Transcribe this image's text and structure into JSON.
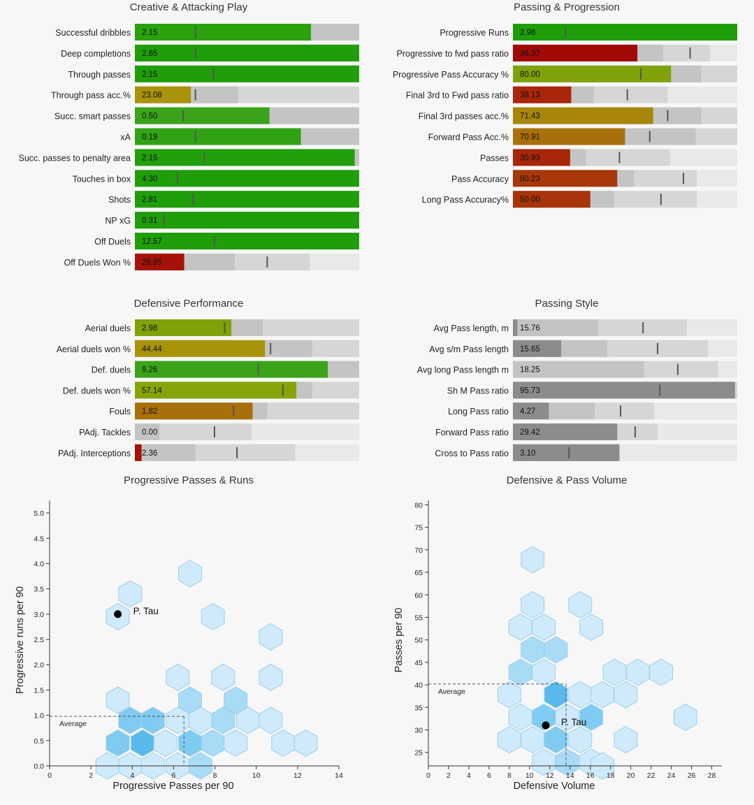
{
  "bar_panels": [
    {
      "title": "Creative & Attacking Play",
      "rows": [
        {
          "label": "Successful dribbles",
          "text": "2.15",
          "fill": 0.785,
          "bg1": 1.0,
          "bg2": 1.0,
          "marker": 0.27,
          "color": "#2aa10d"
        },
        {
          "label": "Deep completions",
          "text": "2.65",
          "fill": 1.0,
          "bg1": 1.0,
          "bg2": 1.0,
          "marker": 0.27,
          "color": "#1f9e0a"
        },
        {
          "label": "Through passes",
          "text": "2.15",
          "fill": 1.0,
          "bg1": 1.0,
          "bg2": 1.0,
          "marker": 0.35,
          "color": "#1f9e0a"
        },
        {
          "label": "Through pass acc.%",
          "text": "23.08",
          "fill": 0.25,
          "bg1": 0.46,
          "bg2": 1.0,
          "marker": 0.27,
          "color": "#a8930a"
        },
        {
          "label": "Succ. smart passes",
          "text": "0.50",
          "fill": 0.6,
          "bg1": 1.0,
          "bg2": 1.0,
          "marker": 0.215,
          "color": "#3aa31a"
        },
        {
          "label": "xA",
          "text": "0.19",
          "fill": 0.74,
          "bg1": 1.0,
          "bg2": 1.0,
          "marker": 0.27,
          "color": "#30a214"
        },
        {
          "label": "Succ. passes to penalty area",
          "text": "2.15",
          "fill": 0.98,
          "bg1": 1.0,
          "bg2": 1.0,
          "marker": 0.31,
          "color": "#229f0b"
        },
        {
          "label": "Touches in box",
          "text": "4.30",
          "fill": 1.0,
          "bg1": 1.0,
          "bg2": 1.0,
          "marker": 0.19,
          "color": "#1f9e0a"
        },
        {
          "label": "Shots",
          "text": "2.81",
          "fill": 1.0,
          "bg1": 1.0,
          "bg2": 1.0,
          "marker": 0.26,
          "color": "#1f9e0a"
        },
        {
          "label": "NP xG",
          "text": "0.31",
          "fill": 1.0,
          "bg1": 1.0,
          "bg2": 1.0,
          "marker": 0.13,
          "color": "#1f9e0a"
        },
        {
          "label": "Off Duels",
          "text": "12.57",
          "fill": 1.0,
          "bg1": 1.0,
          "bg2": 1.0,
          "marker": 0.355,
          "color": "#1f9e0a"
        },
        {
          "label": "Off Duels Won %",
          "text": "28.95",
          "fill": 0.22,
          "bg1": 0.445,
          "bg2": 0.78,
          "marker": 0.59,
          "color": "#a4120a"
        }
      ]
    },
    {
      "title": "Passing & Progression",
      "rows": [
        {
          "label": "Progressive Runs",
          "text": "2.98",
          "fill": 1.0,
          "bg1": 1.0,
          "bg2": 1.0,
          "marker": 0.235,
          "color": "#1f9e0a"
        },
        {
          "label": "Progressive to fwd pass ratio",
          "text": "36.37",
          "fill": 0.555,
          "bg1": 0.67,
          "bg2": 0.88,
          "marker": 0.79,
          "color": "#a10a06"
        },
        {
          "label": "Progressive Pass Accuracy %",
          "text": "80.00",
          "fill": 0.705,
          "bg1": 0.84,
          "bg2": 1.0,
          "marker": 0.57,
          "color": "#7fa208"
        },
        {
          "label": "Final 3rd to Fwd pass ratio",
          "text": "38.13",
          "fill": 0.26,
          "bg1": 0.36,
          "bg2": 0.69,
          "marker": 0.51,
          "color": "#a8260a"
        },
        {
          "label": "Final 3rd passes acc.%",
          "text": "71.43",
          "fill": 0.625,
          "bg1": 0.84,
          "bg2": 1.0,
          "marker": 0.69,
          "color": "#a8860a"
        },
        {
          "label": "Forward Pass Acc.%",
          "text": "70.91",
          "fill": 0.5,
          "bg1": 0.815,
          "bg2": 1.0,
          "marker": 0.61,
          "color": "#a8700a"
        },
        {
          "label": "Passes",
          "text": "30.93",
          "fill": 0.255,
          "bg1": 0.325,
          "bg2": 0.7,
          "marker": 0.475,
          "color": "#a8260a"
        },
        {
          "label": "Pass Accuracy",
          "text": "80.23",
          "fill": 0.465,
          "bg1": 0.54,
          "bg2": 0.82,
          "marker": 0.76,
          "color": "#a8380a"
        },
        {
          "label": "Long Pass Accuracy%",
          "text": "50.00",
          "fill": 0.345,
          "bg1": 0.45,
          "bg2": 0.82,
          "marker": 0.66,
          "color": "#a8340a"
        }
      ]
    },
    {
      "title": "Defensive Performance",
      "rows": [
        {
          "label": "Aerial duels",
          "text": "2.98",
          "fill": 0.43,
          "bg1": 0.57,
          "bg2": 1.0,
          "marker": 0.4,
          "color": "#7fa208"
        },
        {
          "label": "Aerial duels won %",
          "text": "44.44",
          "fill": 0.58,
          "bg1": 0.79,
          "bg2": 1.0,
          "marker": 0.605,
          "color": "#a8930a"
        },
        {
          "label": "Def. duels",
          "text": "9.26",
          "fill": 0.86,
          "bg1": 1.0,
          "bg2": 1.0,
          "marker": 0.55,
          "color": "#3aa31a"
        },
        {
          "label": "Def. duels won %",
          "text": "57.14",
          "fill": 0.72,
          "bg1": 0.79,
          "bg2": 1.0,
          "marker": 0.66,
          "color": "#86a408"
        },
        {
          "label": "Fouls",
          "text": "1.82",
          "fill": 0.525,
          "bg1": 0.59,
          "bg2": 1.0,
          "marker": 0.44,
          "color": "#a8700a"
        },
        {
          "label": "PAdj. Tackles",
          "text": "0.00",
          "fill": 0.0,
          "bg1": 0.11,
          "bg2": 0.52,
          "marker": 0.355,
          "color": "#a4120a"
        },
        {
          "label": "PAdj. Interceptions",
          "text": "2.36",
          "fill": 0.03,
          "bg1": 0.27,
          "bg2": 0.715,
          "marker": 0.455,
          "color": "#a4120a"
        }
      ]
    },
    {
      "title": "Passing Style",
      "rows": [
        {
          "label": "Avg Pass length, m",
          "text": "15.76",
          "fill": 0.02,
          "bg1": 0.38,
          "bg2": 0.775,
          "marker": 0.58,
          "color": "#8c8c8c"
        },
        {
          "label": "Avg s/m Pass length",
          "text": "15.65",
          "fill": 0.215,
          "bg1": 0.42,
          "bg2": 0.87,
          "marker": 0.645,
          "color": "#8c8c8c"
        },
        {
          "label": "Avg long Pass length m",
          "text": "18.25",
          "fill": 0.0,
          "bg1": 0.585,
          "bg2": 0.915,
          "marker": 0.735,
          "color": "#8c8c8c"
        },
        {
          "label": "Sh M Pass ratio",
          "text": "95.73",
          "fill": 0.99,
          "bg1": 0.99,
          "bg2": 1.0,
          "marker": 0.655,
          "color": "#8c8c8c"
        },
        {
          "label": "Long Pass ratio",
          "text": "4.27",
          "fill": 0.16,
          "bg1": 0.365,
          "bg2": 0.63,
          "marker": 0.48,
          "color": "#8c8c8c"
        },
        {
          "label": "Forward Pass ratio",
          "text": "29.42",
          "fill": 0.465,
          "bg1": 0.465,
          "bg2": 0.645,
          "marker": 0.545,
          "color": "#8c8c8c"
        },
        {
          "label": "Cross to Pass ratio",
          "text": "3.10",
          "fill": 0.475,
          "bg1": 0.475,
          "bg2": 0.475,
          "marker": 0.25,
          "color": "#8c8c8c"
        }
      ]
    }
  ],
  "chart_data": [
    {
      "type": "scatter",
      "title": "Progressive Passes & Runs",
      "xlabel": "Progressive Passes per 90",
      "ylabel": "Progressive runs per 90",
      "xlim": [
        0,
        14
      ],
      "ylim": [
        0,
        5.25
      ],
      "xticks": [
        0,
        2,
        4,
        6,
        8,
        10,
        12,
        14
      ],
      "yticks": [
        0.0,
        0.5,
        1.0,
        1.5,
        2.0,
        2.5,
        3.0,
        3.5,
        4.0,
        4.5,
        5.0
      ],
      "tick_labels_x": [
        "0",
        "2",
        "4",
        "6",
        "8",
        "10",
        "12",
        "14"
      ],
      "tick_labels_y": [
        "0.0",
        "0.5",
        "1.0",
        "1.5",
        "2.0",
        "2.5",
        "3.0",
        "3.5",
        "4.0",
        "4.5",
        "5.0"
      ],
      "average": {
        "x": 6.5,
        "y": 0.98,
        "label": "Average"
      },
      "player": {
        "name": "P. Tau",
        "x": 3.3,
        "y": 3.0
      },
      "hexbins": [
        {
          "x": 3.3,
          "y": 2.95,
          "count": 1
        },
        {
          "x": 3.9,
          "y": 3.4,
          "count": 1
        },
        {
          "x": 6.8,
          "y": 3.8,
          "count": 1
        },
        {
          "x": 7.9,
          "y": 2.95,
          "count": 1
        },
        {
          "x": 10.7,
          "y": 2.55,
          "count": 1
        },
        {
          "x": 6.2,
          "y": 1.75,
          "count": 1
        },
        {
          "x": 8.4,
          "y": 1.75,
          "count": 1
        },
        {
          "x": 10.7,
          "y": 1.75,
          "count": 1
        },
        {
          "x": 3.3,
          "y": 1.3,
          "count": 1
        },
        {
          "x": 6.8,
          "y": 1.3,
          "count": 2
        },
        {
          "x": 9.0,
          "y": 1.3,
          "count": 2
        },
        {
          "x": 3.9,
          "y": 0.9,
          "count": 3
        },
        {
          "x": 5.0,
          "y": 0.9,
          "count": 3
        },
        {
          "x": 6.2,
          "y": 0.9,
          "count": 1
        },
        {
          "x": 7.3,
          "y": 0.9,
          "count": 1
        },
        {
          "x": 8.4,
          "y": 0.9,
          "count": 2
        },
        {
          "x": 9.6,
          "y": 0.9,
          "count": 1
        },
        {
          "x": 10.7,
          "y": 0.9,
          "count": 1
        },
        {
          "x": 3.3,
          "y": 0.45,
          "count": 3
        },
        {
          "x": 4.5,
          "y": 0.45,
          "count": 4
        },
        {
          "x": 5.6,
          "y": 0.45,
          "count": 1
        },
        {
          "x": 6.8,
          "y": 0.45,
          "count": 3
        },
        {
          "x": 7.9,
          "y": 0.45,
          "count": 2
        },
        {
          "x": 9.0,
          "y": 0.45,
          "count": 1
        },
        {
          "x": 11.3,
          "y": 0.45,
          "count": 1
        },
        {
          "x": 12.4,
          "y": 0.45,
          "count": 1
        },
        {
          "x": 2.8,
          "y": 0.0,
          "count": 1
        },
        {
          "x": 3.9,
          "y": 0.0,
          "count": 1
        },
        {
          "x": 5.0,
          "y": 0.0,
          "count": 1
        },
        {
          "x": 6.2,
          "y": 0.0,
          "count": 1
        },
        {
          "x": 7.3,
          "y": 0.0,
          "count": 2
        }
      ]
    },
    {
      "type": "scatter",
      "title": "Defensive & Pass Volume",
      "xlabel": "Defensive Volume",
      "ylabel": "Passes per 90",
      "xlim": [
        0,
        29
      ],
      "ylim": [
        22,
        81
      ],
      "xticks": [
        0,
        2,
        4,
        6,
        8,
        10,
        12,
        14,
        16,
        18,
        20,
        22,
        24,
        26,
        28
      ],
      "yticks": [
        25,
        30,
        35,
        40,
        45,
        50,
        55,
        60,
        65,
        70,
        75,
        80
      ],
      "tick_labels_x": [
        "0",
        "2",
        "4",
        "6",
        "8",
        "10",
        "12",
        "14",
        "16",
        "18",
        "20",
        "22",
        "24",
        "26",
        "28"
      ],
      "tick_labels_y": [
        "25",
        "30",
        "35",
        "40",
        "45",
        "50",
        "55",
        "60",
        "65",
        "70",
        "75",
        "80"
      ],
      "average": {
        "x": 13.6,
        "y": 40.2,
        "label": "Average"
      },
      "player": {
        "name": "P. Tau",
        "x": 11.6,
        "y": 31.0
      },
      "hexbins": [
        {
          "x": 10.3,
          "y": 67.8,
          "count": 1
        },
        {
          "x": 10.3,
          "y": 57.8,
          "count": 1
        },
        {
          "x": 15.0,
          "y": 57.8,
          "count": 1
        },
        {
          "x": 9.1,
          "y": 52.8,
          "count": 1
        },
        {
          "x": 11.4,
          "y": 52.8,
          "count": 1
        },
        {
          "x": 16.1,
          "y": 52.8,
          "count": 1
        },
        {
          "x": 10.3,
          "y": 47.8,
          "count": 2
        },
        {
          "x": 12.6,
          "y": 47.8,
          "count": 2
        },
        {
          "x": 9.1,
          "y": 42.8,
          "count": 2
        },
        {
          "x": 11.4,
          "y": 42.8,
          "count": 1
        },
        {
          "x": 18.4,
          "y": 42.8,
          "count": 1
        },
        {
          "x": 20.7,
          "y": 42.8,
          "count": 1
        },
        {
          "x": 23.0,
          "y": 42.8,
          "count": 1
        },
        {
          "x": 8.0,
          "y": 37.8,
          "count": 1
        },
        {
          "x": 12.6,
          "y": 37.8,
          "count": 4
        },
        {
          "x": 15.0,
          "y": 37.8,
          "count": 1
        },
        {
          "x": 17.2,
          "y": 37.8,
          "count": 1
        },
        {
          "x": 19.5,
          "y": 37.8,
          "count": 1
        },
        {
          "x": 9.1,
          "y": 32.8,
          "count": 1
        },
        {
          "x": 11.4,
          "y": 32.8,
          "count": 3
        },
        {
          "x": 13.7,
          "y": 32.8,
          "count": 1
        },
        {
          "x": 16.1,
          "y": 32.8,
          "count": 3
        },
        {
          "x": 25.4,
          "y": 32.8,
          "count": 1
        },
        {
          "x": 8.0,
          "y": 27.8,
          "count": 1
        },
        {
          "x": 10.3,
          "y": 27.8,
          "count": 1
        },
        {
          "x": 12.6,
          "y": 27.8,
          "count": 3
        },
        {
          "x": 15.0,
          "y": 27.8,
          "count": 1
        },
        {
          "x": 19.5,
          "y": 27.8,
          "count": 1
        },
        {
          "x": 11.4,
          "y": 22.8,
          "count": 1
        },
        {
          "x": 13.7,
          "y": 22.8,
          "count": 2
        },
        {
          "x": 16.1,
          "y": 22.8,
          "count": 1
        },
        {
          "x": 17.2,
          "y": 22.0,
          "count": 1
        }
      ]
    }
  ],
  "colors": {
    "bg_light": "#e9e9e9",
    "bg_mid": "#d6d6d6",
    "bg_dark": "#c4c4c4",
    "marker": "#555555",
    "hex_1": "#cfeafa",
    "hex_2": "#a8dbf6",
    "hex_3": "#7fcbf1",
    "hex_4": "#58b9ec",
    "hex_stroke": "#9ccfe9"
  }
}
